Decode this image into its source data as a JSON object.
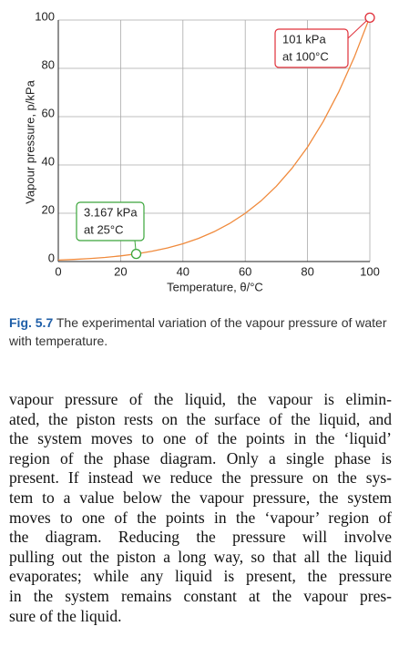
{
  "chart_data": {
    "type": "line",
    "ylabel": "Vapour pressure, p/kPa",
    "xlabel": "Temperature, θ/°C",
    "xlim": [
      0,
      100
    ],
    "ylim": [
      0,
      100
    ],
    "xticks": [
      0,
      20,
      40,
      60,
      80,
      100
    ],
    "yticks": [
      0,
      20,
      40,
      60,
      80,
      100
    ],
    "grid": true,
    "series": [
      {
        "color": "#f08a3c",
        "x": [
          0,
          5,
          10,
          15,
          20,
          25,
          30,
          35,
          40,
          45,
          50,
          55,
          60,
          65,
          70,
          75,
          80,
          85,
          90,
          95,
          100
        ],
        "values": [
          0.61,
          0.87,
          1.23,
          1.71,
          2.34,
          3.17,
          4.25,
          5.63,
          7.38,
          9.59,
          12.35,
          15.76,
          19.95,
          25.03,
          31.2,
          38.6,
          47.4,
          57.9,
          70.2,
          84.6,
          101.3
        ]
      }
    ],
    "points": [
      {
        "x": 25,
        "y": 3.167,
        "color": "#3aa53a",
        "label": [
          "3.167 kPa",
          "at 25°C"
        ]
      },
      {
        "x": 100,
        "y": 101,
        "color": "#e0303a",
        "label": [
          "101 kPa",
          "at 100°C"
        ]
      }
    ]
  },
  "caption": {
    "label": "Fig. 5.7",
    "text": "The experimental variation of the vapour pressure of water with temperature."
  },
  "body": {
    "lines": [
      "vapour pressure of the liquid, the vapour is elimin-",
      "ated, the piston rests on the surface of the liquid, and",
      "the system moves to one of the points in the ‘liquid’",
      "region of the phase diagram. Only a single phase is",
      "present. If instead we reduce the pressure on the sys-",
      "tem to a value below the vapour pressure, the system",
      "moves to one of the points in the ‘vapour’ region of",
      "the diagram. Reducing the pressure will involve",
      "pulling out the piston a long way, so that all the liquid",
      "evaporates; while any liquid is present, the pressure",
      "in the system remains constant at the vapour pres-",
      "sure of the liquid."
    ]
  }
}
